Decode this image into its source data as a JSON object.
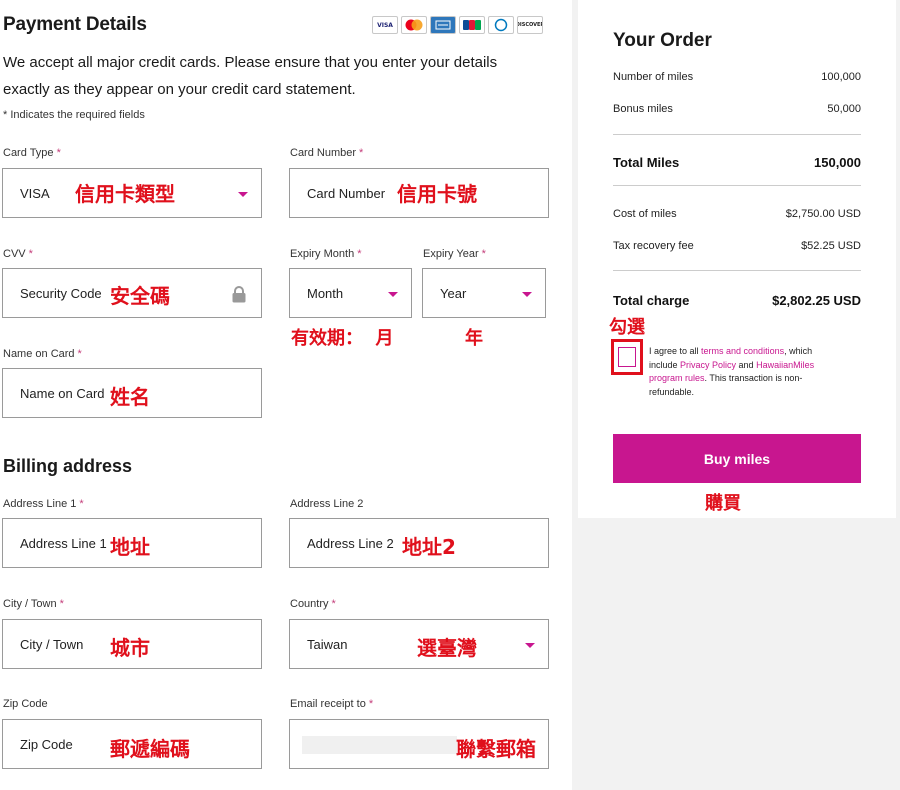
{
  "payment": {
    "title": "Payment Details",
    "card_logos": [
      "VISA",
      "MC",
      "AMEX",
      "JCB",
      "Diners",
      "DISCOVER"
    ],
    "intro": "We accept all major credit cards. Please ensure that you enter your details exactly as they appear on your credit card statement.",
    "required_note": "* Indicates the required fields",
    "star": "*",
    "card_type": {
      "label": "Card Type",
      "value": "VISA",
      "annotation": "信用卡類型"
    },
    "card_number": {
      "label": "Card Number",
      "placeholder": "Card Number",
      "annotation": "信用卡號"
    },
    "cvv": {
      "label": "CVV",
      "placeholder": "Security Code",
      "annotation": "安全碼"
    },
    "expiry_month": {
      "label": "Expiry Month",
      "value": "Month"
    },
    "expiry_year": {
      "label": "Expiry Year",
      "value": "Year"
    },
    "expiry_annotation_month": "有效期：  月",
    "expiry_annotation_year": "年",
    "name_on_card": {
      "label": "Name on Card",
      "placeholder": "Name on Card",
      "annotation": "姓名"
    }
  },
  "billing": {
    "title": "Billing address",
    "address1": {
      "label": "Address Line 1",
      "placeholder": "Address Line 1",
      "annotation": "地址"
    },
    "address2": {
      "label": "Address Line 2",
      "placeholder": "Address Line 2",
      "annotation": "地址2"
    },
    "city": {
      "label": "City / Town",
      "placeholder": "City / Town",
      "annotation": "城市"
    },
    "country": {
      "label": "Country",
      "value": "Taiwan",
      "annotation": "選臺灣"
    },
    "zip": {
      "label": "Zip Code",
      "placeholder": "Zip Code",
      "annotation": "郵遞編碼"
    },
    "email": {
      "label": "Email receipt to",
      "annotation": "聯繫郵箱"
    }
  },
  "order": {
    "title": "Your Order",
    "miles_label": "Number of miles",
    "miles_value": "100,000",
    "bonus_label": "Bonus miles",
    "bonus_value": "50,000",
    "total_miles_label": "Total Miles",
    "total_miles_value": "150,000",
    "cost_label": "Cost of miles",
    "cost_value": "$2,750.00 USD",
    "tax_label": "Tax recovery fee",
    "tax_value": "$52.25 USD",
    "total_charge_label": "Total charge",
    "total_charge_value": "$2,802.25 USD",
    "check_annotation": "勾選",
    "agree_1": "I agree to all ",
    "agree_terms": "terms and conditions",
    "agree_2": ", which include ",
    "agree_privacy": "Privacy Policy",
    "agree_3": " and ",
    "agree_program": "HawaiianMiles program rules",
    "agree_4": ". This transaction is non-refundable.",
    "buy_label": "Buy miles",
    "buy_annotation": "購買"
  },
  "colors": {
    "accent": "#c8168f",
    "annotation": "#e0101c"
  }
}
